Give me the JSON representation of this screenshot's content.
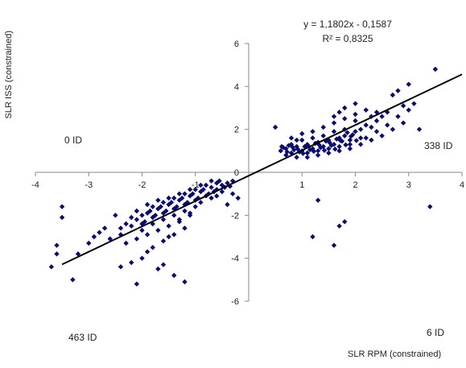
{
  "chart_data": {
    "type": "scatter",
    "title": "",
    "xlabel": "SLR RPM (constrained)",
    "ylabel": "SLR ISS (constrained)",
    "xlim": [
      -4,
      4
    ],
    "ylim": [
      -6,
      6
    ],
    "xticks": [
      -4,
      -3,
      -2,
      -1,
      0,
      1,
      2,
      3,
      4
    ],
    "yticks": [
      -6,
      -4,
      -2,
      0,
      2,
      4,
      6
    ],
    "marker_color": "#0a0a78",
    "trendline_color": "#000000",
    "trendline": {
      "slope": 1.1802,
      "intercept": -0.1587,
      "x_range": [
        -3.5,
        4
      ],
      "equation": "y = 1,1802x - 0,1587",
      "r2_label": "R² = 0,8325"
    },
    "quadrant_labels": {
      "top_left": "0 ID",
      "top_right": "338 ID",
      "bottom_left": "463 ID",
      "bottom_right": "6 ID"
    },
    "cluster_samples": {
      "upper_right": [
        [
          0.6,
          1.0
        ],
        [
          0.7,
          1.1
        ],
        [
          0.8,
          0.9
        ],
        [
          0.9,
          1.2
        ],
        [
          1.0,
          1.0
        ],
        [
          1.1,
          1.3
        ],
        [
          1.2,
          1.1
        ],
        [
          1.3,
          1.4
        ],
        [
          1.4,
          1.2
        ],
        [
          1.5,
          1.5
        ],
        [
          1.6,
          1.3
        ],
        [
          1.7,
          1.6
        ],
        [
          1.8,
          1.7
        ],
        [
          1.9,
          1.5
        ],
        [
          2.0,
          1.9
        ],
        [
          2.1,
          2.0
        ],
        [
          2.2,
          2.2
        ],
        [
          2.3,
          2.1
        ],
        [
          2.4,
          2.4
        ],
        [
          2.5,
          2.6
        ],
        [
          2.6,
          2.8
        ],
        [
          0.7,
          0.8
        ],
        [
          0.8,
          1.3
        ],
        [
          0.9,
          0.7
        ],
        [
          1.0,
          1.5
        ],
        [
          1.1,
          0.9
        ],
        [
          1.2,
          1.6
        ],
        [
          1.3,
          1.0
        ],
        [
          1.4,
          1.7
        ],
        [
          1.5,
          1.1
        ],
        [
          1.6,
          1.9
        ],
        [
          1.7,
          1.2
        ],
        [
          1.8,
          2.0
        ],
        [
          1.9,
          1.3
        ],
        [
          2.0,
          2.4
        ],
        [
          2.1,
          1.6
        ],
        [
          0.65,
          1.15
        ],
        [
          0.75,
          1.25
        ],
        [
          0.85,
          1.05
        ],
        [
          0.95,
          0.95
        ],
        [
          1.05,
          1.2
        ],
        [
          1.15,
          1.05
        ],
        [
          1.25,
          1.35
        ],
        [
          1.35,
          1.15
        ],
        [
          1.45,
          1.45
        ],
        [
          1.55,
          1.25
        ],
        [
          1.65,
          1.55
        ],
        [
          1.75,
          1.45
        ],
        [
          1.85,
          1.85
        ],
        [
          1.95,
          1.75
        ],
        [
          0.62,
          1.2
        ],
        [
          0.72,
          0.95
        ],
        [
          0.82,
          1.18
        ],
        [
          0.92,
          1.08
        ],
        [
          1.02,
          0.88
        ],
        [
          1.12,
          1.22
        ],
        [
          1.22,
          0.98
        ],
        [
          1.32,
          1.28
        ],
        [
          1.42,
          1.02
        ],
        [
          1.52,
          1.38
        ],
        [
          1.62,
          1.08
        ],
        [
          1.72,
          1.48
        ],
        [
          1.82,
          1.28
        ],
        [
          1.92,
          1.68
        ],
        [
          2.02,
          1.48
        ],
        [
          1.0,
          1.8
        ],
        [
          1.2,
          1.9
        ],
        [
          1.4,
          2.1
        ],
        [
          1.6,
          2.3
        ],
        [
          1.8,
          2.5
        ],
        [
          2.0,
          2.7
        ],
        [
          2.2,
          2.9
        ],
        [
          1.1,
          0.7
        ],
        [
          1.3,
          0.8
        ],
        [
          1.5,
          0.9
        ],
        [
          1.7,
          1.0
        ],
        [
          1.9,
          1.1
        ],
        [
          2.1,
          1.3
        ],
        [
          2.3,
          1.5
        ],
        [
          2.5,
          1.7
        ],
        [
          2.7,
          2.0
        ],
        [
          2.9,
          2.3
        ],
        [
          3.0,
          2.9
        ],
        [
          3.1,
          3.2
        ],
        [
          0.8,
          1.6
        ],
        [
          0.9,
          1.5
        ],
        [
          2.4,
          1.9
        ],
        [
          2.2,
          1.6
        ],
        [
          2.6,
          2.2
        ],
        [
          2.8,
          2.6
        ],
        [
          1.6,
          2.6
        ],
        [
          1.8,
          3.0
        ],
        [
          2.0,
          3.2
        ],
        [
          1.7,
          2.8
        ]
      ],
      "lower_left": [
        [
          -0.6,
          -0.5
        ],
        [
          -0.7,
          -0.7
        ],
        [
          -0.8,
          -0.6
        ],
        [
          -0.9,
          -0.9
        ],
        [
          -1.0,
          -0.8
        ],
        [
          -1.1,
          -1.1
        ],
        [
          -1.2,
          -1.0
        ],
        [
          -1.3,
          -1.3
        ],
        [
          -1.4,
          -1.2
        ],
        [
          -1.5,
          -1.5
        ],
        [
          -1.6,
          -1.4
        ],
        [
          -1.7,
          -1.7
        ],
        [
          -1.8,
          -1.6
        ],
        [
          -1.9,
          -1.9
        ],
        [
          -2.0,
          -2.0
        ],
        [
          -2.1,
          -2.2
        ],
        [
          -2.2,
          -2.1
        ],
        [
          -2.3,
          -2.4
        ],
        [
          -2.4,
          -2.6
        ],
        [
          -0.65,
          -0.9
        ],
        [
          -0.75,
          -1.0
        ],
        [
          -0.85,
          -0.8
        ],
        [
          -0.95,
          -1.2
        ],
        [
          -1.05,
          -1.0
        ],
        [
          -1.15,
          -1.4
        ],
        [
          -1.25,
          -1.2
        ],
        [
          -1.35,
          -1.6
        ],
        [
          -1.45,
          -1.4
        ],
        [
          -1.55,
          -1.8
        ],
        [
          -1.65,
          -1.6
        ],
        [
          -1.75,
          -2.0
        ],
        [
          -1.85,
          -1.8
        ],
        [
          -1.95,
          -2.3
        ],
        [
          -0.6,
          -0.8
        ],
        [
          -0.7,
          -0.4
        ],
        [
          -0.8,
          -1.1
        ],
        [
          -0.9,
          -0.6
        ],
        [
          -1.0,
          -1.3
        ],
        [
          -1.1,
          -0.8
        ],
        [
          -1.2,
          -1.5
        ],
        [
          -1.3,
          -1.0
        ],
        [
          -1.4,
          -1.7
        ],
        [
          -1.5,
          -1.2
        ],
        [
          -1.6,
          -1.9
        ],
        [
          -1.7,
          -1.3
        ],
        [
          -1.8,
          -2.1
        ],
        [
          -1.9,
          -1.5
        ],
        [
          -2.0,
          -2.4
        ],
        [
          -2.1,
          -1.8
        ],
        [
          -1.0,
          -1.6
        ],
        [
          -1.2,
          -1.8
        ],
        [
          -1.4,
          -2.0
        ],
        [
          -1.6,
          -2.2
        ],
        [
          -1.8,
          -2.4
        ],
        [
          -1.1,
          -2.0
        ],
        [
          -1.3,
          -2.3
        ],
        [
          -1.5,
          -2.5
        ],
        [
          -1.7,
          -2.7
        ],
        [
          -1.9,
          -2.9
        ],
        [
          -2.1,
          -3.1
        ],
        [
          -1.2,
          -2.6
        ],
        [
          -1.4,
          -2.9
        ],
        [
          -1.6,
          -3.2
        ],
        [
          -1.8,
          -3.5
        ],
        [
          -2.0,
          -2.7
        ],
        [
          -2.2,
          -2.5
        ],
        [
          -2.4,
          -2.9
        ],
        [
          -2.6,
          -3.1
        ],
        [
          -2.8,
          -2.8
        ],
        [
          -3.0,
          -3.3
        ],
        [
          -3.2,
          -3.8
        ],
        [
          -2.5,
          -2.0
        ],
        [
          -2.7,
          -2.6
        ],
        [
          -2.9,
          -3.0
        ],
        [
          -2.3,
          -3.3
        ],
        [
          -1.9,
          -3.7
        ],
        [
          -1.5,
          -3.0
        ],
        [
          -1.3,
          -2.2
        ],
        [
          -1.1,
          -1.9
        ],
        [
          -0.9,
          -1.4
        ],
        [
          -0.7,
          -1.2
        ],
        [
          -2.2,
          -4.2
        ],
        [
          -2.0,
          -4.0
        ],
        [
          -1.7,
          -4.5
        ],
        [
          -1.4,
          -4.8
        ],
        [
          -2.1,
          -5.2
        ],
        [
          -1.2,
          -5.1
        ],
        [
          -1.6,
          -4.3
        ],
        [
          -2.4,
          -4.4
        ],
        [
          -0.5,
          -0.6
        ],
        [
          -0.55,
          -0.4
        ],
        [
          -0.45,
          -0.7
        ],
        [
          -0.5,
          -0.9
        ],
        [
          -0.6,
          -1.1
        ],
        [
          -0.4,
          -0.5
        ],
        [
          -0.3,
          -0.4
        ],
        [
          -0.35,
          -0.65
        ]
      ],
      "outliers": [
        [
          -3.5,
          -1.6
        ],
        [
          -3.5,
          -2.1
        ],
        [
          -3.3,
          -5.0
        ],
        [
          -3.6,
          -3.4
        ],
        [
          -3.7,
          -4.4
        ],
        [
          -3.6,
          -3.8
        ],
        [
          0.5,
          2.1
        ],
        [
          1.3,
          -1.3
        ],
        [
          1.7,
          -2.5
        ],
        [
          1.8,
          -2.3
        ],
        [
          1.6,
          -3.4
        ],
        [
          1.2,
          -3.0
        ],
        [
          3.4,
          -1.6
        ],
        [
          3.5,
          4.8
        ],
        [
          3.2,
          2.0
        ],
        [
          -0.3,
          -1.0
        ],
        [
          -0.4,
          -1.5
        ],
        [
          -0.2,
          -1.2
        ],
        [
          2.7,
          3.6
        ],
        [
          2.9,
          3.1
        ],
        [
          2.4,
          2.8
        ],
        [
          2.3,
          2.6
        ],
        [
          3.0,
          4.1
        ],
        [
          2.8,
          3.8
        ]
      ]
    }
  }
}
